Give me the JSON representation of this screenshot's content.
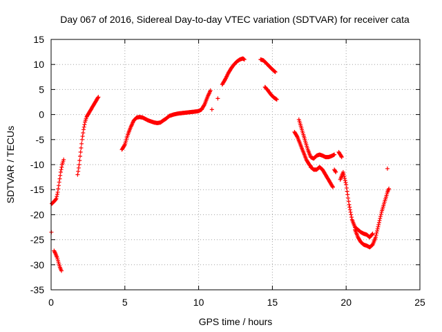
{
  "chart_data": {
    "type": "scatter",
    "title": "Day 067 of 2016, Sidereal Day-to-day VTEC variation (SDTVAR) for receiver cata",
    "xlabel": "GPS time / hours",
    "ylabel": "SDTVAR / TECUs",
    "xlim": [
      0,
      25
    ],
    "ylim": [
      -35,
      15
    ],
    "xticks": [
      0,
      5,
      10,
      15,
      20,
      25
    ],
    "yticks": [
      -35,
      -30,
      -25,
      -20,
      -15,
      -10,
      -5,
      0,
      5,
      10,
      15
    ],
    "grid": true,
    "marker": "+",
    "color": "#ff0000",
    "series": [
      {
        "name": "SDTVAR",
        "segments": [
          [
            [
              0.05,
              -17.8
            ],
            [
              0.15,
              -17.5
            ],
            [
              0.25,
              -17.2
            ],
            [
              0.35,
              -16.8
            ],
            [
              0.45,
              -15.5
            ],
            [
              0.55,
              -13.5
            ],
            [
              0.65,
              -11.5
            ],
            [
              0.75,
              -10
            ],
            [
              0.85,
              -9
            ]
          ],
          [
            [
              0.02,
              -23.5
            ]
          ],
          [
            [
              0.2,
              -27.2
            ],
            [
              0.3,
              -27.8
            ],
            [
              0.4,
              -28.5
            ],
            [
              0.5,
              -29.5
            ],
            [
              0.6,
              -30.5
            ],
            [
              0.7,
              -31.2
            ]
          ],
          [
            [
              1.8,
              -12
            ],
            [
              1.9,
              -10
            ],
            [
              2.0,
              -7.5
            ],
            [
              2.1,
              -5
            ],
            [
              2.2,
              -3
            ],
            [
              2.3,
              -1.5
            ],
            [
              2.4,
              -0.5
            ],
            [
              2.6,
              0.5
            ],
            [
              2.8,
              1.5
            ],
            [
              3.0,
              2.5
            ],
            [
              3.2,
              3.5
            ]
          ],
          [
            [
              4.8,
              -7
            ],
            [
              5.0,
              -6
            ],
            [
              5.2,
              -4
            ],
            [
              5.4,
              -2.5
            ],
            [
              5.6,
              -1.2
            ],
            [
              5.8,
              -0.6
            ],
            [
              6.0,
              -0.5
            ],
            [
              6.2,
              -0.6
            ],
            [
              6.4,
              -0.9
            ],
            [
              6.6,
              -1.2
            ],
            [
              6.8,
              -1.4
            ],
            [
              7.0,
              -1.6
            ],
            [
              7.2,
              -1.7
            ],
            [
              7.4,
              -1.6
            ],
            [
              7.6,
              -1.2
            ],
            [
              7.8,
              -0.8
            ],
            [
              8.0,
              -0.3
            ],
            [
              8.3,
              0
            ],
            [
              8.6,
              0.2
            ],
            [
              8.9,
              0.3
            ],
            [
              9.2,
              0.4
            ],
            [
              9.5,
              0.5
            ],
            [
              9.8,
              0.6
            ],
            [
              10.0,
              0.7
            ],
            [
              10.2,
              1.0
            ],
            [
              10.4,
              2.0
            ],
            [
              10.6,
              3.5
            ],
            [
              10.8,
              4.8
            ]
          ],
          [
            [
              10.9,
              1.0
            ]
          ],
          [
            [
              11.3,
              3.2
            ]
          ],
          [
            [
              11.6,
              6
            ],
            [
              11.8,
              7
            ],
            [
              12.0,
              8.2
            ],
            [
              12.2,
              9.2
            ],
            [
              12.4,
              10
            ],
            [
              12.6,
              10.6
            ],
            [
              12.8,
              11
            ],
            [
              13.0,
              11.2
            ],
            [
              13.1,
              11.0
            ]
          ],
          [
            [
              14.2,
              11
            ],
            [
              14.4,
              10.8
            ],
            [
              14.6,
              10.2
            ],
            [
              14.8,
              9.6
            ],
            [
              15.0,
              9.0
            ],
            [
              15.2,
              8.5
            ]
          ],
          [
            [
              14.5,
              5.5
            ],
            [
              14.7,
              4.8
            ],
            [
              14.9,
              4.0
            ],
            [
              15.1,
              3.4
            ],
            [
              15.3,
              3.0
            ]
          ],
          [
            [
              16.5,
              -3.5
            ],
            [
              16.7,
              -4.5
            ],
            [
              16.9,
              -6
            ],
            [
              17.1,
              -7.5
            ],
            [
              17.3,
              -9
            ],
            [
              17.5,
              -10
            ],
            [
              17.6,
              -10.3
            ]
          ],
          [
            [
              16.8,
              -1
            ],
            [
              17.0,
              -3
            ],
            [
              17.2,
              -5
            ],
            [
              17.4,
              -7
            ],
            [
              17.6,
              -8.5
            ],
            [
              17.8,
              -8.8
            ],
            [
              18.0,
              -8.2
            ],
            [
              18.2,
              -8
            ],
            [
              18.4,
              -8.2
            ],
            [
              18.6,
              -8.5
            ],
            [
              18.8,
              -8.5
            ],
            [
              19.0,
              -8.3
            ],
            [
              19.2,
              -8.0
            ]
          ],
          [
            [
              17.6,
              -10.5
            ],
            [
              17.8,
              -11
            ],
            [
              18.0,
              -11
            ],
            [
              18.2,
              -10.5
            ],
            [
              18.4,
              -11
            ],
            [
              18.6,
              -12
            ],
            [
              18.8,
              -13
            ],
            [
              19.0,
              -14
            ],
            [
              19.1,
              -14.5
            ]
          ],
          [
            [
              19.2,
              -11
            ],
            [
              19.3,
              -11.5
            ]
          ],
          [
            [
              19.5,
              -7.5
            ],
            [
              19.6,
              -8
            ],
            [
              19.7,
              -8.5
            ]
          ],
          [
            [
              19.6,
              -13
            ],
            [
              19.8,
              -11.5
            ],
            [
              20.0,
              -14
            ],
            [
              20.2,
              -18
            ],
            [
              20.4,
              -21
            ],
            [
              20.6,
              -22.5
            ],
            [
              20.8,
              -23
            ],
            [
              21.0,
              -23.5
            ],
            [
              21.2,
              -23.8
            ],
            [
              21.4,
              -24
            ],
            [
              21.6,
              -24.5
            ],
            [
              21.8,
              -23.8
            ]
          ],
          [
            [
              20.6,
              -23
            ],
            [
              20.8,
              -24.5
            ],
            [
              21.0,
              -25.5
            ],
            [
              21.2,
              -26
            ],
            [
              21.4,
              -26.2
            ],
            [
              21.6,
              -26.5
            ],
            [
              21.8,
              -26
            ],
            [
              22.0,
              -24.5
            ],
            [
              22.2,
              -22
            ],
            [
              22.4,
              -19.5
            ],
            [
              22.6,
              -17.5
            ],
            [
              22.8,
              -15.5
            ],
            [
              22.9,
              -14.8
            ]
          ],
          [
            [
              22.8,
              -10.8
            ]
          ]
        ]
      }
    ]
  }
}
